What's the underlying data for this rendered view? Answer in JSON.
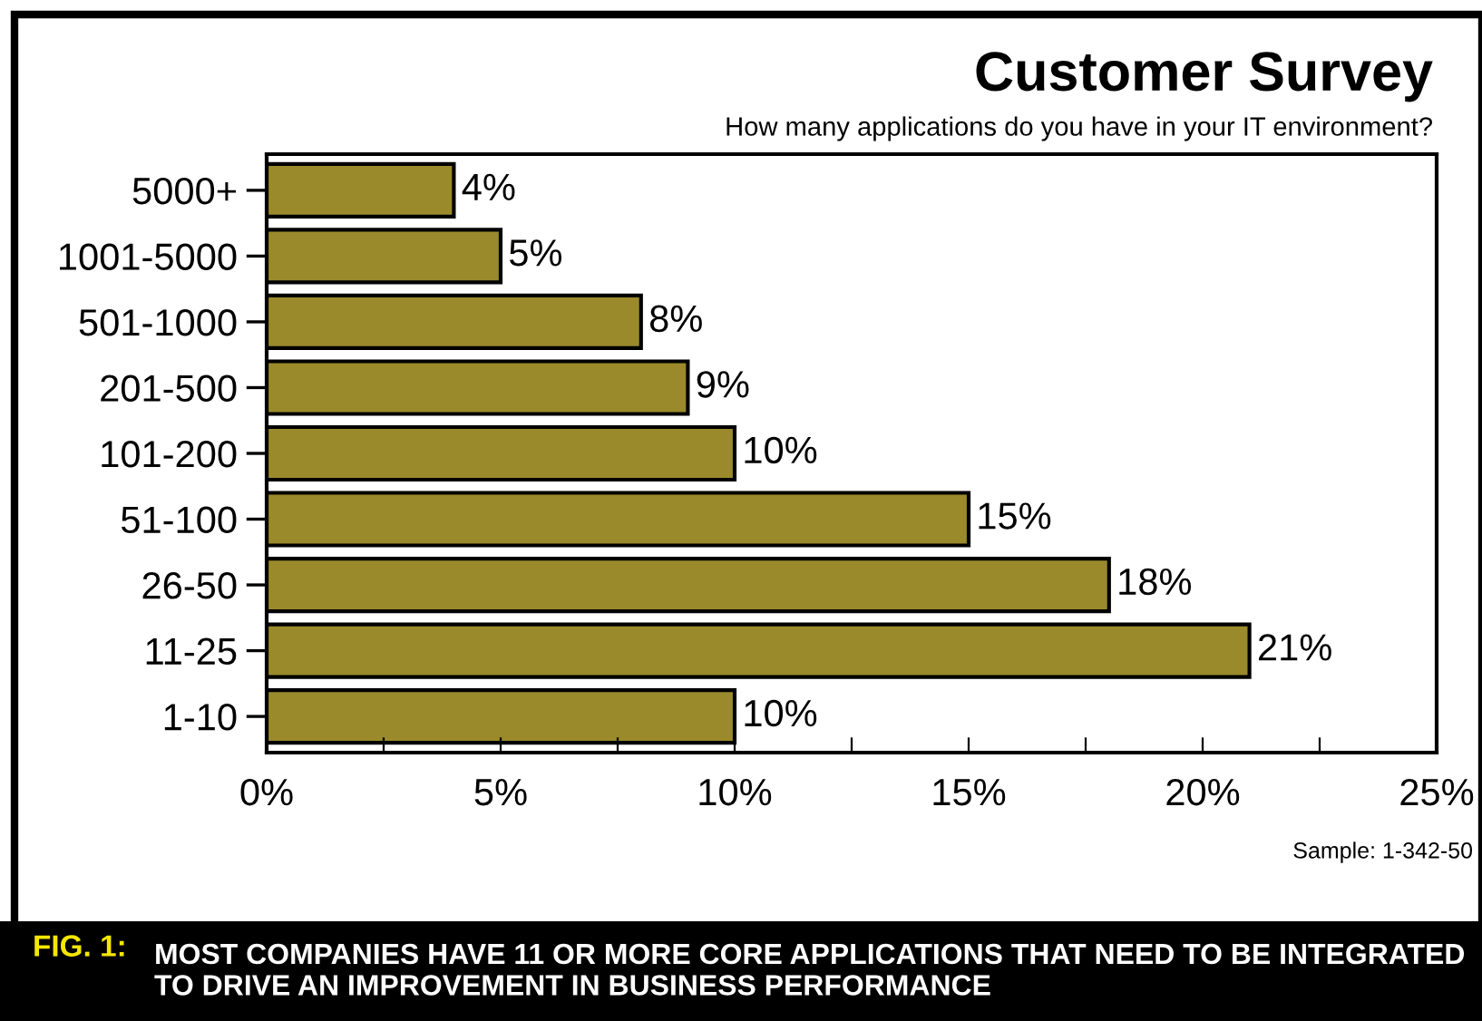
{
  "chart_data": {
    "type": "bar",
    "orientation": "horizontal",
    "title": "Customer Survey",
    "subtitle": "How many applications do you have in your IT environment?",
    "categories": [
      "5000+",
      "1001-5000",
      "501-1000",
      "201-500",
      "101-200",
      "51-100",
      "26-50",
      "11-25",
      "1-10"
    ],
    "values": [
      4,
      5,
      8,
      9,
      10,
      15,
      18,
      21,
      10
    ],
    "value_labels": [
      "4%",
      "5%",
      "8%",
      "9%",
      "10%",
      "15%",
      "18%",
      "21%",
      "10%"
    ],
    "color": "#9a8a2c",
    "xlim": [
      0,
      25
    ],
    "xticks": [
      {
        "value": 0,
        "label": "0%"
      },
      {
        "value": 2.5,
        "label": null
      },
      {
        "value": 5,
        "label": "5%"
      },
      {
        "value": 7.5,
        "label": null
      },
      {
        "value": 10,
        "label": "10%"
      },
      {
        "value": 12.5,
        "label": null
      },
      {
        "value": 15,
        "label": "15%"
      },
      {
        "value": 17.5,
        "label": null
      },
      {
        "value": 20,
        "label": "20%"
      },
      {
        "value": 22.5,
        "label": null
      },
      {
        "value": 25,
        "label": "25%"
      }
    ],
    "grid": false,
    "legend": false,
    "annotations": [
      "Sample: 1-342-50",
      "FIG. 1:",
      "MOST COMPANIES HAVE 11 OR MORE CORE APPLICATIONS THAT NEED TO BE INTEGRATED TO DRIVE AN IMPROVEMENT IN BUSINESS PERFORMANCE"
    ]
  }
}
